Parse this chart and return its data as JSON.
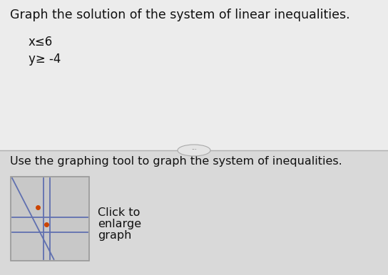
{
  "title_text": "Graph the solution of the system of linear inequalities.",
  "ineq1": "x≤6",
  "ineq2": "y≥ -4",
  "instruction": "Use the graphing tool to graph the system of inequalities.",
  "click_text": [
    "Click to",
    "enlarge",
    "graph"
  ],
  "bg_color_top": "#ececec",
  "bg_color_bot": "#d9d9d9",
  "divider_color": "#b0b0b0",
  "text_color": "#111111",
  "title_fontsize": 12.5,
  "body_fontsize": 12,
  "small_fontsize": 11.5,
  "graph_line_color": "#6070b0",
  "graph_dot_color": "#cc4400",
  "ellipse_facecolor": "#e4e4e4",
  "ellipse_edgecolor": "#aaaaaa",
  "graph_box_facecolor": "#c8c8c8",
  "graph_box_edgecolor": "#999999"
}
